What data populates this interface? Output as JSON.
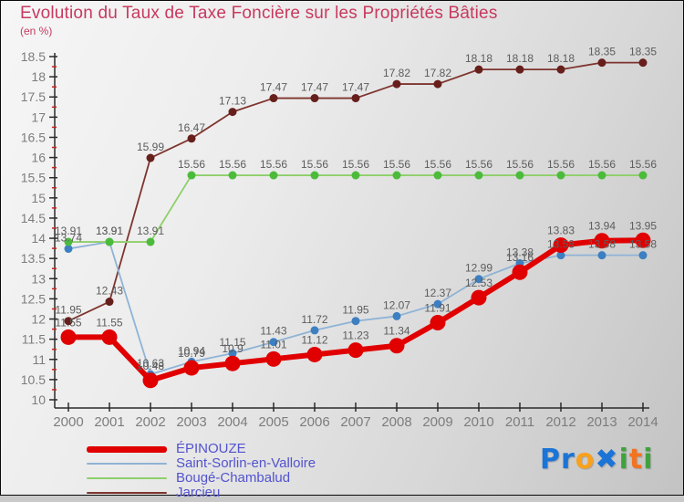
{
  "header": {
    "title": "Evolution du Taux de Taxe Foncière sur les Propriétés Bâties",
    "subtitle": "(en %)"
  },
  "chart_data": {
    "type": "line",
    "x": [
      2000,
      2001,
      2002,
      2003,
      2004,
      2005,
      2006,
      2007,
      2008,
      2009,
      2010,
      2011,
      2012,
      2013,
      2014
    ],
    "axis": {
      "y_min": 10,
      "y_max": 18.5,
      "y_step": 0.5,
      "y_minor_step": 0.25,
      "grid": false,
      "tick_color": "#2a2a2a",
      "minor_tick_color": "#cc2222",
      "axis_label_color": "#7d7d7d",
      "value_label_color": "#5c5c5c"
    },
    "legend_position": "bottom-left",
    "series": [
      {
        "name": "ÉPINOUZE",
        "values": [
          11.55,
          11.55,
          10.48,
          10.79,
          10.9,
          11.01,
          11.12,
          11.23,
          11.34,
          11.91,
          12.53,
          13.16,
          13.83,
          13.94,
          13.95
        ],
        "line_color": "#e10000",
        "dot_color": "#e10000",
        "thick": true
      },
      {
        "name": "Saint-Sorlin-en-Valloire",
        "values": [
          13.74,
          13.91,
          10.63,
          10.94,
          11.15,
          11.43,
          11.72,
          11.95,
          12.07,
          12.37,
          12.99,
          13.38,
          13.58,
          13.58,
          13.58
        ],
        "line_color": "#8fb3d6",
        "dot_color": "#3d7fc1",
        "thick": false
      },
      {
        "name": "Bougé-Chambalud",
        "values": [
          13.91,
          13.91,
          13.91,
          15.56,
          15.56,
          15.56,
          15.56,
          15.56,
          15.56,
          15.56,
          15.56,
          15.56,
          15.56,
          15.56,
          15.56
        ],
        "line_color": "#8ecf6a",
        "dot_color": "#4cbb3c",
        "thick": false
      },
      {
        "name": "Jarcieu",
        "values": [
          11.95,
          12.43,
          15.99,
          16.47,
          17.13,
          17.47,
          17.47,
          17.47,
          17.82,
          17.82,
          18.18,
          18.18,
          18.18,
          18.35,
          18.35
        ],
        "line_color": "#7e342e",
        "dot_color": "#671f1c",
        "thick": false
      }
    ]
  },
  "legend": {
    "text_color": "#5353cf"
  },
  "logo": {
    "letters": [
      {
        "ch": "P",
        "color": "#1b74d6"
      },
      {
        "ch": "r",
        "color": "#1b74d6"
      },
      {
        "ch": "o",
        "color": "#f9a11b"
      },
      {
        "ch": "✖",
        "color": "#1b74d6"
      },
      {
        "ch": "i",
        "color": "#3fa33c"
      },
      {
        "ch": "t",
        "color": "#f4731f"
      },
      {
        "ch": "i",
        "color": "#3fa33c"
      }
    ]
  }
}
